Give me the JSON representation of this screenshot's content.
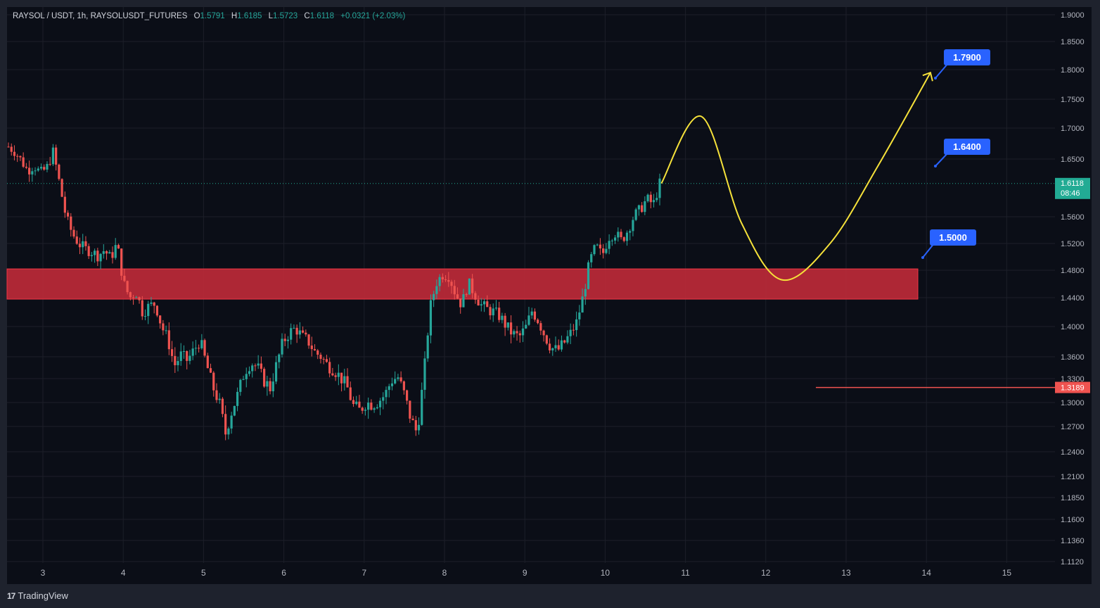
{
  "header": {
    "symbol": "RAYSOL / USDT, 1h, RAYSOLUSDT_FUTURES",
    "o_label": "O",
    "o": "1.5791",
    "h_label": "H",
    "h": "1.6185",
    "l_label": "L",
    "l": "1.5723",
    "c_label": "C",
    "c": "1.6118",
    "change": "+0.0321 (+2.03%)"
  },
  "brand": {
    "name": "TradingView",
    "logo": "17"
  },
  "colors": {
    "bg": "#0b0e17",
    "frame": "#1e222d",
    "grid": "#1c1f29",
    "up": "#26a69a",
    "down": "#ef5350",
    "zone": "#c02a38",
    "yellow": "#f5e13a",
    "label": "#2962ff",
    "price": "#22ab94"
  },
  "chart_data": {
    "type": "candlestick",
    "title": "RAYSOL / USDT, 1h, RAYSOLUSDT_FUTURES",
    "y_ticks": [
      "1.9000",
      "1.8500",
      "1.8000",
      "1.7500",
      "1.7000",
      "1.6500",
      "1.5600",
      "1.5200",
      "1.4800",
      "1.4400",
      "1.4000",
      "1.3600",
      "1.3300",
      "1.3000",
      "1.2700",
      "1.2400",
      "1.2100",
      "1.1850",
      "1.1600",
      "1.1360",
      "1.1120"
    ],
    "x_ticks": [
      "3",
      "4",
      "5",
      "6",
      "7",
      "8",
      "9",
      "10",
      "11",
      "12",
      "13",
      "14",
      "15"
    ],
    "close_path": [
      1.67,
      1.662,
      1.648,
      1.632,
      1.64,
      1.628,
      1.636,
      1.662,
      1.612,
      1.56,
      1.535,
      1.52,
      1.512,
      1.508,
      1.502,
      1.51,
      1.498,
      1.52,
      1.462,
      1.44,
      1.448,
      1.42,
      1.428,
      1.432,
      1.4,
      1.382,
      1.348,
      1.362,
      1.355,
      1.368,
      1.382,
      1.35,
      1.32,
      1.3,
      1.262,
      1.29,
      1.312,
      1.34,
      1.352,
      1.346,
      1.328,
      1.318,
      1.35,
      1.38,
      1.392,
      1.398,
      1.386,
      1.38,
      1.366,
      1.36,
      1.348,
      1.342,
      1.332,
      1.32,
      1.296,
      1.29,
      1.3,
      1.298,
      1.302,
      1.31,
      1.328,
      1.332,
      1.31,
      1.28,
      1.262,
      1.33,
      1.424,
      1.462,
      1.474,
      1.472,
      1.446,
      1.43,
      1.462,
      1.446,
      1.43,
      1.424,
      1.42,
      1.414,
      1.4,
      1.39,
      1.386,
      1.398,
      1.422,
      1.408,
      1.388,
      1.372,
      1.368,
      1.378,
      1.39,
      1.406,
      1.442,
      1.492,
      1.516,
      1.502,
      1.53,
      1.536,
      1.524,
      1.54,
      1.562,
      1.572,
      1.588,
      1.579,
      1.6118
    ],
    "last_price": "1.6118",
    "countdown": "08:46",
    "level_label": "1.3189",
    "level_value": 1.3189,
    "zone": {
      "low": 1.438,
      "high": 1.482
    },
    "targets": [
      {
        "label": "1.7900",
        "value": 1.79
      },
      {
        "label": "1.6400",
        "value": 1.64
      },
      {
        "label": "1.5000",
        "value": 1.5
      }
    ],
    "projection": [
      [
        10.7,
        1.612
      ],
      [
        11.2,
        1.72
      ],
      [
        11.7,
        1.55
      ],
      [
        12.2,
        1.466
      ],
      [
        12.8,
        1.52
      ],
      [
        13.4,
        1.64
      ],
      [
        14.05,
        1.795
      ]
    ]
  }
}
